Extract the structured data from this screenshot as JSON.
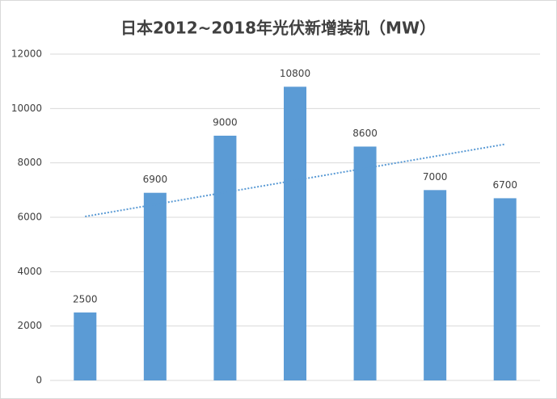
{
  "chart_data": {
    "type": "bar",
    "title": "日本2012~2018年光伏新增装机（MW）",
    "categories": [
      null,
      null,
      null,
      null,
      null,
      null,
      null
    ],
    "values": [
      2500,
      6900,
      9000,
      10800,
      8600,
      7000,
      6700
    ],
    "color": "#5b9bd5",
    "ylim": [
      0,
      12000
    ],
    "yticks": [
      0,
      2000,
      4000,
      6000,
      8000,
      10000,
      12000
    ],
    "grid": true,
    "trendline": "linear",
    "trendline_color": "#5b9bd5"
  }
}
